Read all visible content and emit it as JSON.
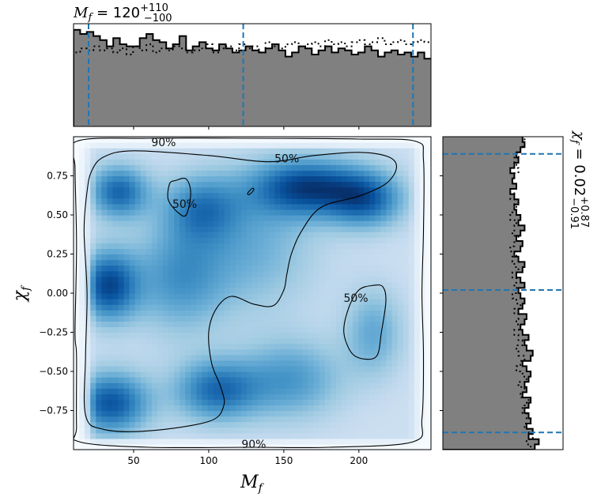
{
  "chart_data": {
    "type": "heatmap",
    "x_parameter": "M_f",
    "y_parameter": "chi_f",
    "xlabel": "M_f",
    "ylabel": "χ_f",
    "xlim": [
      10,
      248
    ],
    "ylim": [
      -1.0,
      1.0
    ],
    "xticks": [
      50,
      100,
      150,
      200
    ],
    "yticks": [
      -0.75,
      -0.5,
      -0.25,
      0.0,
      0.25,
      0.5,
      0.75
    ],
    "xtick_labels": [
      "50",
      "100",
      "150",
      "200"
    ],
    "ytick_labels": [
      "−0.75",
      "−0.50",
      "−0.25",
      "0.00",
      "0.25",
      "0.50",
      "0.75"
    ],
    "colormap": "Blues",
    "density_blobs": [
      {
        "x": 33,
        "y": 0.05,
        "sx": 14,
        "sy": 0.16,
        "w": 1.0
      },
      {
        "x": 35,
        "y": -0.7,
        "sx": 18,
        "sy": 0.14,
        "w": 0.95
      },
      {
        "x": 40,
        "y": 0.65,
        "sx": 14,
        "sy": 0.12,
        "w": 0.85
      },
      {
        "x": 105,
        "y": -0.62,
        "sx": 20,
        "sy": 0.14,
        "w": 0.8
      },
      {
        "x": 165,
        "y": 0.68,
        "sx": 26,
        "sy": 0.13,
        "w": 1.0
      },
      {
        "x": 205,
        "y": 0.6,
        "sx": 18,
        "sy": 0.13,
        "w": 0.8
      },
      {
        "x": 95,
        "y": 0.55,
        "sx": 18,
        "sy": 0.15,
        "w": 0.6
      },
      {
        "x": 80,
        "y": 0.1,
        "sx": 22,
        "sy": 0.25,
        "w": 0.55
      },
      {
        "x": 155,
        "y": -0.55,
        "sx": 24,
        "sy": 0.18,
        "w": 0.55
      },
      {
        "x": 210,
        "y": -0.25,
        "sx": 14,
        "sy": 0.2,
        "w": 0.45
      },
      {
        "x": 130,
        "y": 0.3,
        "sx": 30,
        "sy": 0.3,
        "w": 0.4
      }
    ],
    "contours": [
      {
        "label": "90%",
        "points": [
          [
            12,
            0.97
          ],
          [
            60,
            0.99
          ],
          [
            130,
            0.99
          ],
          [
            200,
            0.985
          ],
          [
            238,
            0.97
          ],
          [
            243,
            0.85
          ],
          [
            243,
            0.4
          ],
          [
            242,
            0.0
          ],
          [
            243,
            -0.4
          ],
          [
            242,
            -0.8
          ],
          [
            236,
            -0.95
          ],
          [
            180,
            -0.985
          ],
          [
            130,
            -0.985
          ],
          [
            60,
            -0.985
          ],
          [
            14,
            -0.95
          ],
          [
            12,
            -0.85
          ],
          [
            12,
            -0.4
          ],
          [
            11,
            -0.25
          ],
          [
            12,
            0.3
          ],
          [
            11,
            0.8
          ]
        ],
        "labels_at": [
          [
            70,
            0.965
          ],
          [
            130,
            -0.965
          ]
        ],
        "label_text": [
          "90%",
          "90%"
        ]
      },
      {
        "label": "50%",
        "points": [
          [
            22,
            0.78
          ],
          [
            30,
            0.87
          ],
          [
            50,
            0.91
          ],
          [
            100,
            0.88
          ],
          [
            140,
            0.84
          ],
          [
            170,
            0.88
          ],
          [
            200,
            0.9
          ],
          [
            220,
            0.87
          ],
          [
            225,
            0.8
          ],
          [
            218,
            0.7
          ],
          [
            200,
            0.62
          ],
          [
            175,
            0.55
          ],
          [
            162,
            0.4
          ],
          [
            155,
            0.25
          ],
          [
            152,
            0.12
          ],
          [
            150,
            0.02
          ],
          [
            143,
            -0.08
          ],
          [
            130,
            -0.07
          ],
          [
            115,
            -0.02
          ],
          [
            105,
            -0.1
          ],
          [
            100,
            -0.25
          ],
          [
            102,
            -0.45
          ],
          [
            108,
            -0.6
          ],
          [
            110,
            -0.72
          ],
          [
            100,
            -0.82
          ],
          [
            60,
            -0.88
          ],
          [
            30,
            -0.87
          ],
          [
            18,
            -0.78
          ],
          [
            18,
            -0.4
          ],
          [
            19,
            0.0
          ],
          [
            17,
            0.4
          ],
          [
            19,
            0.65
          ]
        ],
        "labels_at": [
          [
            152,
            0.86
          ]
        ],
        "label_text": [
          "50%"
        ]
      },
      {
        "label": "50%",
        "points": [
          [
            78,
            0.72
          ],
          [
            85,
            0.73
          ],
          [
            88,
            0.64
          ],
          [
            85,
            0.5
          ],
          [
            79,
            0.52
          ],
          [
            73,
            0.6
          ],
          [
            74,
            0.7
          ]
        ],
        "labels_at": [
          [
            84,
            0.57
          ]
        ],
        "label_text": [
          "50%"
        ]
      },
      {
        "label": "50%",
        "points": [
          [
            193,
            -0.1
          ],
          [
            200,
            0.02
          ],
          [
            210,
            0.05
          ],
          [
            216,
            0.04
          ],
          [
            218,
            -0.05
          ],
          [
            215,
            -0.25
          ],
          [
            212,
            -0.4
          ],
          [
            203,
            -0.42
          ],
          [
            195,
            -0.38
          ],
          [
            190,
            -0.25
          ]
        ],
        "labels_at": [
          [
            198,
            -0.03
          ]
        ],
        "label_text": [
          "50%"
        ]
      },
      {
        "label": "",
        "points": [
          [
            126,
            0.64
          ],
          [
            129,
            0.67
          ],
          [
            130,
            0.66
          ],
          [
            127,
            0.63
          ]
        ],
        "labels_at": [],
        "label_text": []
      }
    ],
    "top_marginal": {
      "parameter": "M_f",
      "title": "M_f = 120^{+110}_{−100}",
      "title_main": "M",
      "title_sub": "f",
      "title_eq": " = 120",
      "title_sup": "+110",
      "title_low": "−100",
      "hist_solid": [
        0.94,
        0.9,
        0.92,
        0.88,
        0.84,
        0.78,
        0.86,
        0.8,
        0.78,
        0.78,
        0.86,
        0.9,
        0.84,
        0.82,
        0.76,
        0.8,
        0.88,
        0.74,
        0.78,
        0.82,
        0.76,
        0.74,
        0.8,
        0.76,
        0.72,
        0.74,
        0.78,
        0.74,
        0.72,
        0.76,
        0.8,
        0.74,
        0.68,
        0.72,
        0.78,
        0.76,
        0.7,
        0.74,
        0.78,
        0.72,
        0.76,
        0.74,
        0.7,
        0.72,
        0.78,
        0.74,
        0.68,
        0.72,
        0.74,
        0.7,
        0.72,
        0.68,
        0.72,
        0.66
      ],
      "hist_dotted": [
        0.72,
        0.76,
        0.74,
        0.78,
        0.74,
        0.76,
        0.72,
        0.76,
        0.7,
        0.78,
        0.74,
        0.8,
        0.72,
        0.76,
        0.74,
        0.78,
        0.76,
        0.72,
        0.74,
        0.76,
        0.8,
        0.72,
        0.76,
        0.78,
        0.74,
        0.8,
        0.76,
        0.78,
        0.72,
        0.82,
        0.78,
        0.76,
        0.8,
        0.82,
        0.78,
        0.8,
        0.82,
        0.78,
        0.84,
        0.8,
        0.82,
        0.78,
        0.82,
        0.84,
        0.8,
        0.82,
        0.86,
        0.8,
        0.82,
        0.84,
        0.8,
        0.82,
        0.84,
        0.82
      ],
      "quantile_lines": [
        20,
        123,
        236
      ],
      "hist_ymax": 1.0
    },
    "right_marginal": {
      "parameter": "chi_f",
      "title": "χ_f = 0.02^{+0.87}_{−0.91}",
      "title_main": "χ",
      "title_sub": "f",
      "title_eq": " = 0.02",
      "title_sup": "+0.87",
      "title_low": "−0.91",
      "hist_solid": [
        0.9,
        0.94,
        0.84,
        0.88,
        0.82,
        0.86,
        0.84,
        0.8,
        0.84,
        0.86,
        0.78,
        0.82,
        0.8,
        0.84,
        0.86,
        0.82,
        0.78,
        0.86,
        0.88,
        0.82,
        0.8,
        0.84,
        0.78,
        0.76,
        0.8,
        0.82,
        0.74,
        0.78,
        0.8,
        0.76,
        0.74,
        0.8,
        0.76,
        0.72,
        0.78,
        0.8,
        0.74,
        0.7,
        0.76,
        0.78,
        0.72,
        0.76,
        0.8,
        0.74,
        0.76,
        0.72,
        0.7,
        0.74,
        0.7,
        0.66,
        0.72,
        0.68,
        0.7,
        0.66,
        0.7,
        0.74,
        0.72,
        0.76,
        0.8,
        0.78
      ],
      "hist_dotted": [
        0.86,
        0.82,
        0.88,
        0.84,
        0.8,
        0.86,
        0.82,
        0.78,
        0.8,
        0.84,
        0.76,
        0.8,
        0.74,
        0.82,
        0.78,
        0.72,
        0.76,
        0.8,
        0.74,
        0.72,
        0.78,
        0.74,
        0.7,
        0.76,
        0.72,
        0.74,
        0.7,
        0.76,
        0.72,
        0.68,
        0.74,
        0.7,
        0.72,
        0.68,
        0.74,
        0.7,
        0.68,
        0.72,
        0.66,
        0.7,
        0.74,
        0.68,
        0.7,
        0.72,
        0.66,
        0.68,
        0.72,
        0.7,
        0.66,
        0.7,
        0.72,
        0.68,
        0.7,
        0.74,
        0.72,
        0.7,
        0.74,
        0.76,
        0.78,
        0.8
      ],
      "quantile_lines": [
        -0.89,
        0.02,
        0.89
      ],
      "hist_ymax": 1.0
    },
    "colors": {
      "hist_fill": "#808080",
      "hist_edge": "#000000",
      "quantile": "#1f77b4",
      "contour": "#000000"
    }
  }
}
